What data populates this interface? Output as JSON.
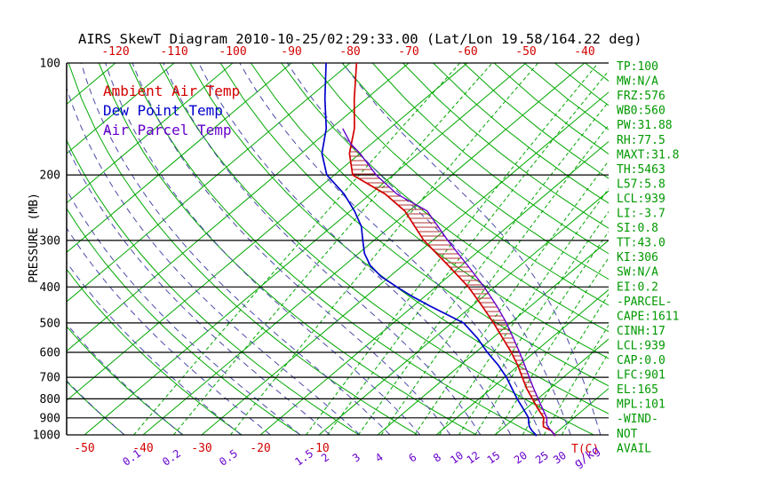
{
  "title": "AIRS SkewT Diagram 2010-10-25/02:29:33.00 (Lat/Lon 19.58/164.22 deg)",
  "colors": {
    "background": "#ffffff",
    "axis": "#000000",
    "temp": "#d40000",
    "dewpoint": "#0000cd",
    "parcel": "#6600cc",
    "green_lines": "#00a800",
    "moist_adiabat": "#4a4aa8",
    "mixing_label": "#6600cc",
    "stats_text": "#009900",
    "hatch": "#b03030"
  },
  "legend": [
    {
      "label": "Ambient Air Temp",
      "series": "temp"
    },
    {
      "label": "Dew Point Temp",
      "series": "dewpoint"
    },
    {
      "label": "Air Parcel Temp",
      "series": "parcel"
    }
  ],
  "axes": {
    "pressure_label": "PRESSURE (MB)",
    "pressure_ticks": [
      100,
      200,
      300,
      400,
      500,
      600,
      700,
      800,
      900,
      1000
    ],
    "top_temp_ticks": [
      -120,
      -110,
      -100,
      -90,
      -80,
      -70,
      -60,
      -50,
      -40
    ],
    "bottom_temp_ticks": [
      -50,
      -40,
      -30,
      -20,
      -10
    ],
    "temp_unit_label": "T(C)",
    "mixing_ratio_values": [
      0.1,
      0.2,
      0.5,
      1.5,
      2,
      3,
      4,
      6,
      8,
      10,
      12,
      15,
      20,
      25,
      30
    ],
    "mixing_unit_label": "g/kg"
  },
  "stats": {
    "lines": [
      "TP:100",
      "MW:N/A",
      "FRZ:576",
      "WB0:560",
      "PW:31.88",
      "RH:77.5",
      "MAXT:31.8",
      "TH:5463",
      "L57:5.8",
      "LCL:939",
      "LI:-3.7",
      "SI:0.8",
      "TT:43.0",
      "KI:306",
      "SW:N/A",
      "EI:0.2",
      "-PARCEL-",
      "CAPE:1611",
      "CINH:17",
      "LCL:939",
      "CAP:0.0",
      "LFC:901",
      "EL:165",
      "MPL:101",
      "-WIND-",
      "NOT",
      "AVAIL"
    ]
  },
  "chart_data": {
    "type": "line",
    "title": "AIRS SkewT Diagram 2010-10-25/02:29:33.00 (Lat/Lon 19.58/164.22 deg)",
    "x_axis": {
      "label": "T(C)",
      "skewed": true
    },
    "y_axis": {
      "label": "PRESSURE (MB)",
      "scale": "log",
      "range_mb": [
        100,
        1000
      ]
    },
    "series": [
      {
        "name": "Ambient Air Temp",
        "color_key": "temp",
        "points": [
          [
            1008,
            30.5
          ],
          [
            1000,
            30.2
          ],
          [
            975,
            28.8
          ],
          [
            950,
            26.6
          ],
          [
            925,
            25.7
          ],
          [
            900,
            24.9
          ],
          [
            850,
            22.0
          ],
          [
            800,
            19.1
          ],
          [
            750,
            16.0
          ],
          [
            700,
            13.0
          ],
          [
            650,
            9.8
          ],
          [
            600,
            6.1
          ],
          [
            550,
            1.8
          ],
          [
            500,
            -2.9
          ],
          [
            450,
            -8.3
          ],
          [
            400,
            -14.5
          ],
          [
            350,
            -22.3
          ],
          [
            300,
            -31.5
          ],
          [
            250,
            -40.7
          ],
          [
            225,
            -47.5
          ],
          [
            200,
            -56.9
          ],
          [
            175,
            -61.8
          ],
          [
            150,
            -66.0
          ],
          [
            125,
            -72.0
          ],
          [
            100,
            -78.9
          ]
        ]
      },
      {
        "name": "Dew Point Temp",
        "color_key": "dewpoint",
        "points": [
          [
            1008,
            27.3
          ],
          [
            1000,
            27.0
          ],
          [
            975,
            25.5
          ],
          [
            950,
            24.2
          ],
          [
            925,
            23.2
          ],
          [
            900,
            22.3
          ],
          [
            850,
            19.5
          ],
          [
            800,
            16.5
          ],
          [
            750,
            13.5
          ],
          [
            700,
            10.3
          ],
          [
            650,
            6.5
          ],
          [
            600,
            2.0
          ],
          [
            550,
            -2.5
          ],
          [
            500,
            -8.0
          ],
          [
            475,
            -12.5
          ],
          [
            450,
            -17.2
          ],
          [
            425,
            -22.0
          ],
          [
            400,
            -26.7
          ],
          [
            375,
            -31.5
          ],
          [
            350,
            -35.6
          ],
          [
            325,
            -39.0
          ],
          [
            300,
            -41.9
          ],
          [
            275,
            -45.0
          ],
          [
            250,
            -49.3
          ],
          [
            225,
            -54.5
          ],
          [
            200,
            -61.3
          ],
          [
            175,
            -66.5
          ],
          [
            150,
            -70.8
          ],
          [
            125,
            -77.0
          ],
          [
            100,
            -84.1
          ]
        ]
      },
      {
        "name": "Air Parcel Temp",
        "color_key": "parcel",
        "points": [
          [
            1008,
            30.5
          ],
          [
            1000,
            30.2
          ],
          [
            960,
            27.9
          ],
          [
            939,
            26.8
          ],
          [
            900,
            25.4
          ],
          [
            850,
            22.8
          ],
          [
            800,
            20.1
          ],
          [
            750,
            17.2
          ],
          [
            700,
            14.2
          ],
          [
            650,
            11.0
          ],
          [
            600,
            7.5
          ],
          [
            550,
            3.6
          ],
          [
            500,
            -0.7
          ],
          [
            450,
            -5.8
          ],
          [
            400,
            -11.8
          ],
          [
            350,
            -19.0
          ],
          [
            300,
            -27.4
          ],
          [
            250,
            -36.9
          ],
          [
            225,
            -45.5
          ],
          [
            200,
            -52.9
          ],
          [
            175,
            -60.0
          ],
          [
            165,
            -63.5
          ],
          [
            150,
            -68.0
          ]
        ]
      }
    ],
    "hatch_region": {
      "between": [
        "Ambient Air Temp",
        "Air Parcel Temp"
      ],
      "from_mb": 939,
      "to_mb": 165
    },
    "background": {
      "isotherms_C": [
        -160,
        -150,
        -140,
        -130,
        -120,
        -110,
        -100,
        -90,
        -80,
        -70,
        -60,
        -50,
        -40,
        -30,
        -20,
        -10,
        0,
        10,
        20,
        30,
        40
      ],
      "dry_adiabats_theta_K": [
        220,
        230,
        240,
        250,
        260,
        270,
        280,
        290,
        300,
        310,
        320,
        330,
        340,
        350,
        360,
        370,
        380,
        390,
        400,
        410,
        420,
        430,
        440,
        450,
        460
      ],
      "moist_adiabats_start_C": [
        -60,
        -50,
        -40,
        -30,
        -20,
        -15,
        -10,
        -5,
        0,
        5,
        10,
        15,
        20,
        25,
        30,
        35,
        40
      ]
    }
  }
}
